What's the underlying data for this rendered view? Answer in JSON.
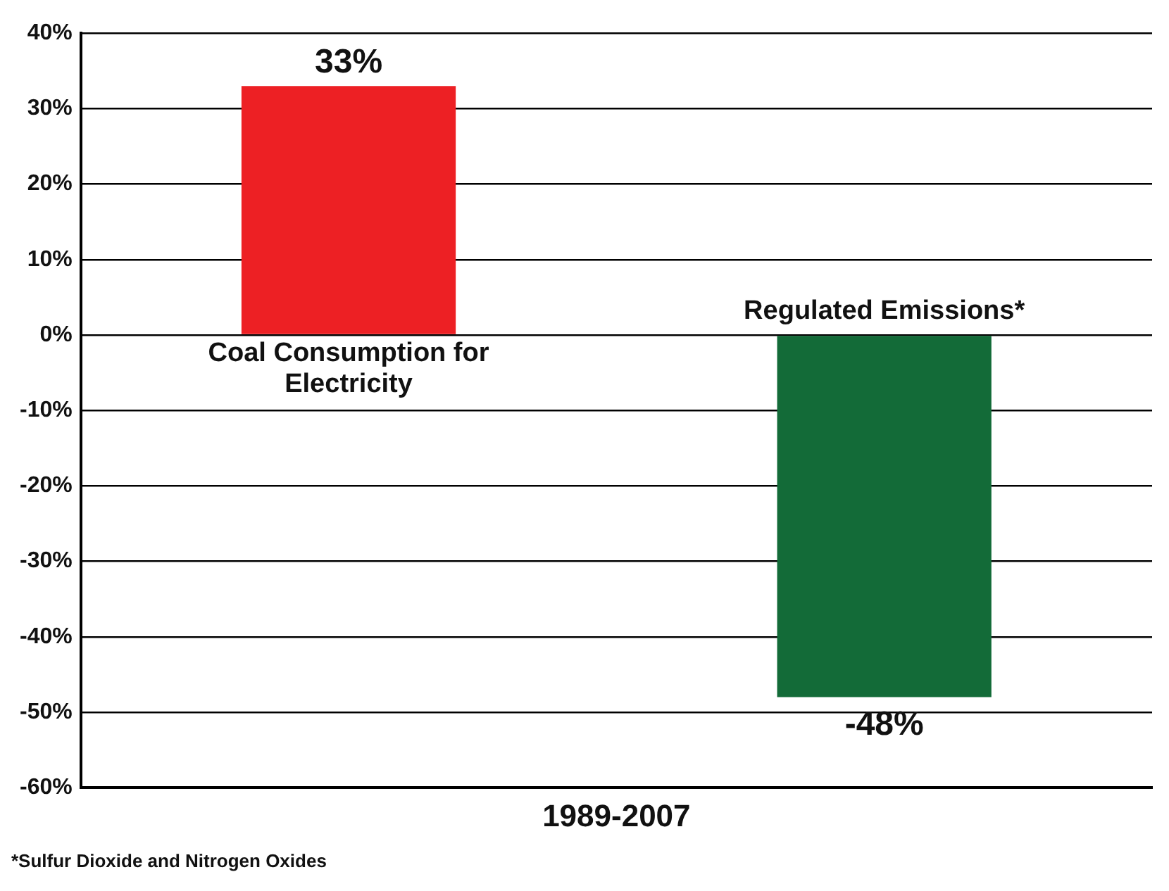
{
  "chart_data": {
    "type": "bar",
    "categories": [
      "Coal Consumption for Electricity",
      "Regulated Emissions*"
    ],
    "values": [
      33,
      -48
    ],
    "colors": [
      "#ed2024",
      "#136b38"
    ],
    "value_labels": [
      "33%",
      "-48%"
    ],
    "xlabel": "1989-2007",
    "ylim": [
      -60,
      40
    ],
    "yticks": [
      {
        "value": -60,
        "label": "-60%"
      },
      {
        "value": -50,
        "label": "-50%"
      },
      {
        "value": -40,
        "label": "-40%"
      },
      {
        "value": -30,
        "label": "-30%"
      },
      {
        "value": -20,
        "label": "-20%"
      },
      {
        "value": -10,
        "label": "-10%"
      },
      {
        "value": 0,
        "label": "0%"
      },
      {
        "value": 10,
        "label": "10%"
      },
      {
        "value": 20,
        "label": "20%"
      },
      {
        "value": 30,
        "label": "30%"
      },
      {
        "value": 40,
        "label": "40%"
      }
    ],
    "grid": "y",
    "tick_labels": "y",
    "legend": false,
    "annotations": [
      "*Sulfur Dioxide and Nitrogen Oxides"
    ]
  }
}
